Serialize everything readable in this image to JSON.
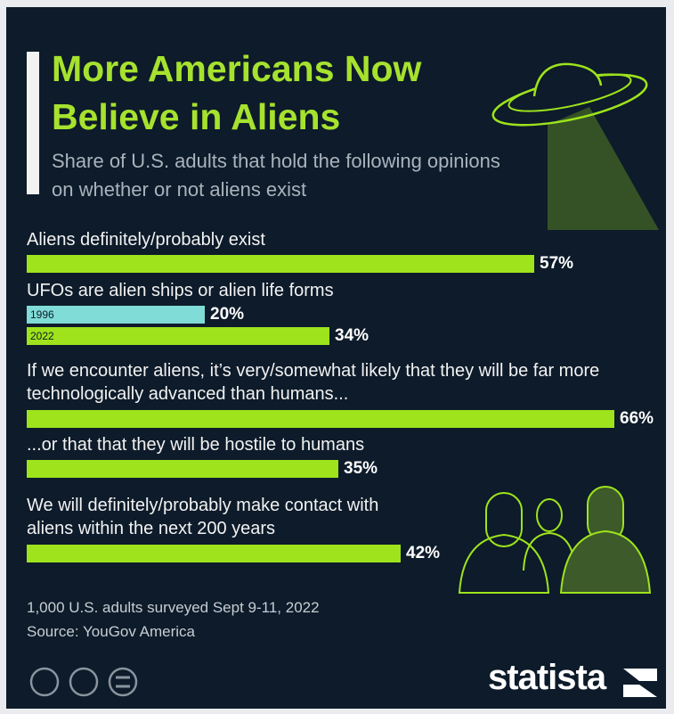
{
  "chart_data": {
    "type": "bar",
    "orientation": "horizontal",
    "title": "More Americans Now Believe in Aliens",
    "subtitle": "Share of U.S. adults that hold the following opinions on whether or not aliens exist",
    "groups": [
      {
        "label": "Aliens definitely/probably exist",
        "bars": [
          {
            "color": "#9ee31c",
            "value": 57,
            "value_label": "57%"
          }
        ]
      },
      {
        "label": "UFOs are alien ships or alien life forms",
        "bars": [
          {
            "name": "1996",
            "color": "#7fdcd6",
            "value": 20,
            "value_label": "20%"
          },
          {
            "name": "2022",
            "color": "#9ee31c",
            "value": 34,
            "value_label": "34%"
          }
        ]
      },
      {
        "label": "If we encounter aliens, it’s very/somewhat likely that they will be far more technologically advanced than humans...",
        "bars": [
          {
            "color": "#9ee31c",
            "value": 66,
            "value_label": "66%"
          }
        ]
      },
      {
        "label": "...or that that they will be hostile to humans",
        "bars": [
          {
            "color": "#9ee31c",
            "value": 35,
            "value_label": "35%"
          }
        ]
      },
      {
        "label": "We will definitely/probably make contact with aliens within the next 200 years",
        "bars": [
          {
            "color": "#9ee31c",
            "value": 42,
            "value_label": "42%"
          }
        ]
      }
    ],
    "note": "1,000 U.S. adults surveyed Sept 9-11, 2022",
    "source": "Source: YouGov America",
    "brand": "statista"
  }
}
